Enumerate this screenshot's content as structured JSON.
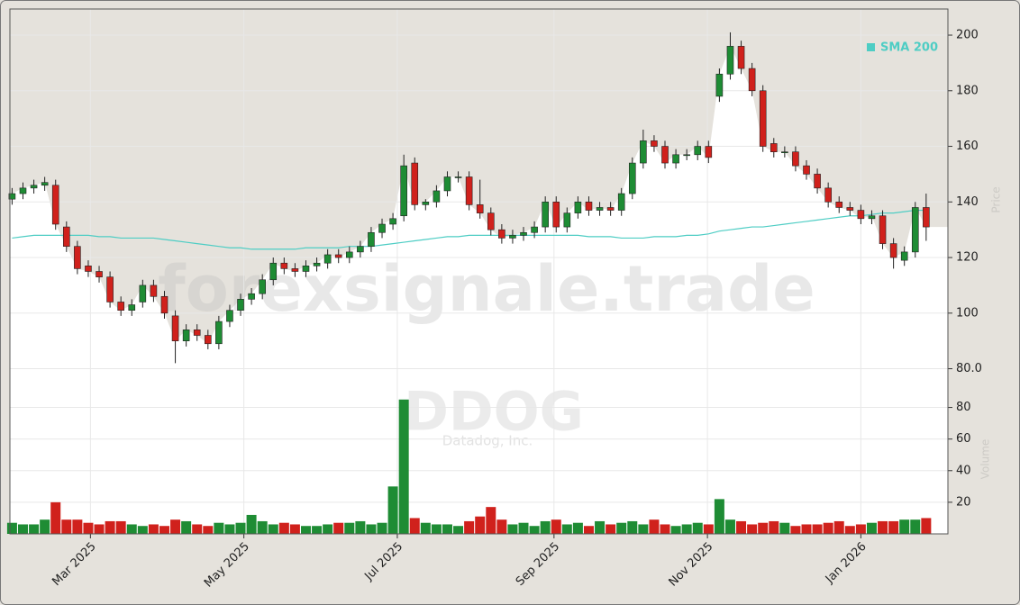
{
  "chart_data": {
    "type": "candlestick",
    "watermark": "forexsignale.trade",
    "symbol": "DDOG",
    "company": "Datadog, Inc.",
    "ylabel": "Price",
    "volume_label": "Volume",
    "up_color": "#1e8c34",
    "down_color": "#d0211c",
    "shade_color": "#e5e2dc",
    "grid": true,
    "legend": "upper right",
    "xlim": [
      -0.2,
      86
    ],
    "xticks": [
      {
        "value": 7.2,
        "label": "Mar 2025"
      },
      {
        "value": 21.3,
        "label": "May 2025"
      },
      {
        "value": 35.4,
        "label": "Jul 2025"
      },
      {
        "value": 49.8,
        "label": "Sep 2025"
      },
      {
        "value": 63.9,
        "label": "Nov 2025"
      },
      {
        "value": 78.0,
        "label": "Jan 2026"
      }
    ],
    "ylim": [
      75,
      209.4
    ],
    "yticks": [
      {
        "value": 80,
        "label": "80.0"
      },
      100,
      120,
      140,
      160,
      180,
      200
    ],
    "volume_ylim": [
      0,
      90
    ],
    "volume_yticks": [
      20,
      40,
      60,
      80
    ],
    "open": [
      141,
      143,
      145,
      146,
      146,
      131,
      124,
      117,
      115,
      113,
      104,
      101,
      104,
      110,
      106,
      99,
      90,
      94,
      92,
      89,
      97,
      101,
      105,
      107,
      112,
      118,
      116,
      115,
      117,
      118,
      121,
      120,
      122,
      124,
      129,
      132,
      135,
      154,
      139,
      140,
      144,
      149,
      149,
      139,
      136,
      130,
      127,
      128,
      129,
      131,
      140,
      131,
      136,
      140,
      137,
      138,
      137,
      143,
      154,
      162,
      160,
      154,
      157,
      157,
      160,
      178,
      186,
      196,
      188,
      180,
      161,
      158,
      158,
      153,
      150,
      145,
      140,
      138,
      137,
      134,
      135,
      125,
      119,
      122,
      138
    ],
    "high": [
      145,
      147,
      148,
      149,
      148,
      133,
      126,
      119,
      117,
      115,
      106,
      105,
      112,
      112,
      108,
      101,
      96,
      96,
      94,
      99,
      103,
      107,
      109,
      114,
      120,
      120,
      118,
      119,
      120,
      123,
      123,
      124,
      126,
      131,
      134,
      136,
      157,
      156,
      141,
      146,
      151,
      151,
      151,
      148,
      138,
      132,
      130,
      131,
      133,
      142,
      142,
      138,
      142,
      142,
      140,
      140,
      145,
      156,
      166,
      164,
      162,
      159,
      159,
      162,
      162,
      188,
      201,
      198,
      190,
      182,
      163,
      160,
      160,
      155,
      152,
      147,
      142,
      140,
      139,
      137,
      137,
      127,
      124,
      140,
      143
    ],
    "low": [
      139,
      141,
      143,
      144,
      130,
      122,
      114,
      113,
      111,
      102,
      99,
      99,
      102,
      104,
      98,
      82,
      88,
      90,
      87,
      87,
      95,
      99,
      103,
      105,
      110,
      114,
      113,
      113,
      115,
      116,
      118,
      118,
      120,
      122,
      127,
      130,
      133,
      137,
      137,
      138,
      142,
      147,
      137,
      134,
      128,
      125,
      125,
      126,
      127,
      129,
      129,
      129,
      134,
      135,
      135,
      135,
      135,
      141,
      152,
      158,
      152,
      152,
      155,
      155,
      154,
      176,
      184,
      186,
      178,
      158,
      156,
      156,
      151,
      148,
      143,
      138,
      136,
      135,
      132,
      132,
      123,
      116,
      117,
      120,
      126
    ],
    "close": [
      143,
      145,
      146,
      147,
      132,
      124,
      116,
      115,
      113,
      104,
      101,
      103,
      110,
      106,
      100,
      90,
      94,
      92,
      89,
      97,
      101,
      105,
      107,
      112,
      118,
      116,
      115,
      117,
      118,
      121,
      120,
      122,
      124,
      129,
      132,
      134,
      153,
      139,
      140,
      144,
      149,
      149,
      139,
      136,
      130,
      127,
      128,
      129,
      131,
      140,
      131,
      136,
      140,
      137,
      138,
      137,
      143,
      154,
      162,
      160,
      154,
      157,
      157,
      160,
      156,
      186,
      196,
      188,
      180,
      160,
      158,
      158,
      153,
      150,
      145,
      140,
      138,
      137,
      134,
      135,
      125,
      120,
      122,
      138,
      131
    ],
    "volume": [
      7,
      6,
      6,
      9,
      20,
      9,
      9,
      7,
      6,
      8,
      8,
      6,
      5,
      6,
      5,
      9,
      8,
      6,
      5,
      7,
      6,
      7,
      12,
      8,
      6,
      7,
      6,
      5,
      5,
      6,
      7,
      7,
      8,
      6,
      7,
      30,
      85,
      10,
      7,
      6,
      6,
      5,
      8,
      11,
      17,
      9,
      6,
      7,
      5,
      8,
      9,
      6,
      7,
      5,
      8,
      6,
      7,
      8,
      6,
      9,
      6,
      5,
      6,
      7,
      6,
      22,
      9,
      8,
      6,
      7,
      8,
      7,
      5,
      6,
      6,
      7,
      8,
      5,
      6,
      7,
      8,
      8,
      9,
      9,
      10
    ],
    "sma": {
      "name": "SMA 200",
      "color": "#4ecdc4",
      "values": [
        127,
        127.5,
        128,
        128,
        128,
        128,
        128,
        128,
        127.5,
        127.5,
        127,
        127,
        127,
        127,
        126.5,
        126,
        125.5,
        125,
        124.5,
        124,
        123.5,
        123.5,
        123,
        123,
        123,
        123,
        123,
        123.5,
        123.5,
        123.5,
        123.5,
        124,
        124,
        124,
        124.5,
        125,
        125.5,
        126,
        126.5,
        127,
        127.5,
        127.5,
        128,
        128,
        128,
        128,
        128,
        128,
        128,
        128,
        128,
        128,
        128,
        127.5,
        127.5,
        127.5,
        127,
        127,
        127,
        127.5,
        127.5,
        127.5,
        128,
        128,
        128.5,
        129.5,
        130,
        130.5,
        131,
        131,
        131.5,
        132,
        132.5,
        133,
        133.5,
        134,
        134.5,
        135,
        135,
        135.5,
        136,
        136,
        136.5,
        137,
        137
      ]
    }
  }
}
